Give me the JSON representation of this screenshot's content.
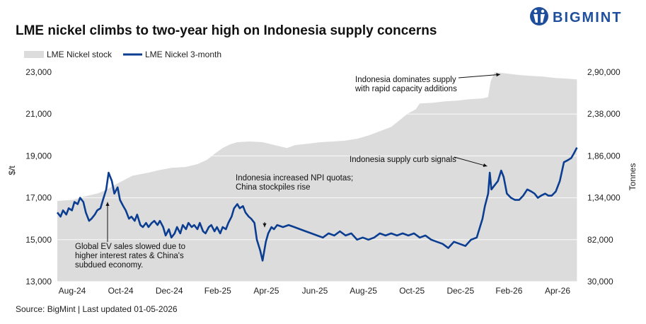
{
  "title": "LME nickel climbs to two-year high on Indonesia supply concerns",
  "brand": {
    "name": "BIGMINT",
    "color": "#1f4e9c"
  },
  "source": "Source: BigMint | Last updated 01-05-2026",
  "chart_data": {
    "type": "line",
    "title": "LME nickel climbs to two-year high on Indonesia supply concerns",
    "ylabel": "$/t",
    "y2label": "Tonnes",
    "ylim": [
      13000,
      23000
    ],
    "y2lim": [
      30000,
      2900000
    ],
    "y_ticks": [
      "13,000",
      "15,000",
      "17,000",
      "19,000",
      "21,000",
      "23,000"
    ],
    "y2_ticks": [
      "30,000",
      "82,000",
      "1,34,000",
      "1,86,000",
      "2,38,000",
      "2,90,000"
    ],
    "x_ticks": [
      "Aug-24",
      "Oct-24",
      "Dec-24",
      "Feb-25",
      "Apr-25",
      "Jun-25",
      "Aug-25",
      "Oct-25",
      "Dec-25",
      "Feb-26",
      "Apr-26"
    ],
    "grid": true,
    "legend_position": "top-left",
    "colors": {
      "stock": "#dcdcdc",
      "price": "#0b3d91"
    },
    "series": [
      {
        "name": "LME Nickel stock",
        "type": "area",
        "axis": "right",
        "points": [
          [
            "2024-08-01",
            1135000
          ],
          [
            "2024-08-20",
            1150000
          ],
          [
            "2024-09-05",
            1200000
          ],
          [
            "2024-09-20",
            1240000
          ],
          [
            "2024-10-01",
            1290000
          ],
          [
            "2024-10-08",
            1340000
          ],
          [
            "2024-10-20",
            1410000
          ],
          [
            "2024-11-01",
            1480000
          ],
          [
            "2024-11-20",
            1520000
          ],
          [
            "2024-12-05",
            1560000
          ],
          [
            "2024-12-20",
            1590000
          ],
          [
            "2025-01-05",
            1600000
          ],
          [
            "2025-01-20",
            1640000
          ],
          [
            "2025-02-01",
            1700000
          ],
          [
            "2025-02-10",
            1780000
          ],
          [
            "2025-02-20",
            1860000
          ],
          [
            "2025-03-01",
            1910000
          ],
          [
            "2025-03-10",
            1940000
          ],
          [
            "2025-03-25",
            1950000
          ],
          [
            "2025-04-10",
            1940000
          ],
          [
            "2025-04-25",
            1900000
          ],
          [
            "2025-05-10",
            1860000
          ],
          [
            "2025-05-20",
            1900000
          ],
          [
            "2025-06-05",
            1920000
          ],
          [
            "2025-06-20",
            1940000
          ],
          [
            "2025-07-05",
            1950000
          ],
          [
            "2025-07-20",
            1960000
          ],
          [
            "2025-08-05",
            1990000
          ],
          [
            "2025-08-20",
            2040000
          ],
          [
            "2025-09-01",
            2090000
          ],
          [
            "2025-09-15",
            2150000
          ],
          [
            "2025-09-25",
            2240000
          ],
          [
            "2025-10-05",
            2330000
          ],
          [
            "2025-10-15",
            2390000
          ],
          [
            "2025-10-20",
            2470000
          ],
          [
            "2025-11-05",
            2480000
          ],
          [
            "2025-11-20",
            2500000
          ],
          [
            "2025-12-05",
            2510000
          ],
          [
            "2025-12-20",
            2530000
          ],
          [
            "2026-01-05",
            2540000
          ],
          [
            "2026-01-12",
            2560000
          ],
          [
            "2026-01-15",
            2770000
          ],
          [
            "2026-01-20",
            2900000
          ],
          [
            "2026-02-05",
            2880000
          ],
          [
            "2026-02-20",
            2860000
          ],
          [
            "2026-03-05",
            2850000
          ],
          [
            "2026-03-20",
            2840000
          ],
          [
            "2026-04-05",
            2820000
          ],
          [
            "2026-04-20",
            2810000
          ],
          [
            "2026-05-01",
            2800000
          ]
        ]
      },
      {
        "name": "LME Nickel 3-month",
        "type": "line",
        "axis": "left",
        "points": [
          [
            "2024-08-01",
            16300
          ],
          [
            "2024-08-05",
            16100
          ],
          [
            "2024-08-08",
            16400
          ],
          [
            "2024-08-12",
            16200
          ],
          [
            "2024-08-15",
            16500
          ],
          [
            "2024-08-19",
            16400
          ],
          [
            "2024-08-22",
            16800
          ],
          [
            "2024-08-26",
            16700
          ],
          [
            "2024-08-29",
            17000
          ],
          [
            "2024-09-02",
            16800
          ],
          [
            "2024-09-05",
            16300
          ],
          [
            "2024-09-09",
            15900
          ],
          [
            "2024-09-12",
            16000
          ],
          [
            "2024-09-16",
            16200
          ],
          [
            "2024-09-19",
            16400
          ],
          [
            "2024-09-23",
            16500
          ],
          [
            "2024-09-26",
            16900
          ],
          [
            "2024-09-30",
            17400
          ],
          [
            "2024-10-03",
            18200
          ],
          [
            "2024-10-07",
            17800
          ],
          [
            "2024-10-10",
            17200
          ],
          [
            "2024-10-14",
            17500
          ],
          [
            "2024-10-17",
            16900
          ],
          [
            "2024-10-21",
            16600
          ],
          [
            "2024-10-24",
            16400
          ],
          [
            "2024-10-28",
            16000
          ],
          [
            "2024-10-31",
            16100
          ],
          [
            "2024-11-04",
            15900
          ],
          [
            "2024-11-07",
            16200
          ],
          [
            "2024-11-11",
            15700
          ],
          [
            "2024-11-14",
            15600
          ],
          [
            "2024-11-18",
            15800
          ],
          [
            "2024-11-21",
            15600
          ],
          [
            "2024-11-25",
            15800
          ],
          [
            "2024-11-28",
            15900
          ],
          [
            "2024-12-02",
            15700
          ],
          [
            "2024-12-05",
            15900
          ],
          [
            "2024-12-09",
            15600
          ],
          [
            "2024-12-12",
            15200
          ],
          [
            "2024-12-16",
            15500
          ],
          [
            "2024-12-19",
            15100
          ],
          [
            "2024-12-23",
            15300
          ],
          [
            "2024-12-26",
            15600
          ],
          [
            "2024-12-30",
            15300
          ],
          [
            "2025-01-02",
            15700
          ],
          [
            "2025-01-06",
            15500
          ],
          [
            "2025-01-09",
            15800
          ],
          [
            "2025-01-13",
            15600
          ],
          [
            "2025-01-16",
            15700
          ],
          [
            "2025-01-20",
            15500
          ],
          [
            "2025-01-23",
            15800
          ],
          [
            "2025-01-27",
            15400
          ],
          [
            "2025-01-30",
            15300
          ],
          [
            "2025-02-03",
            15600
          ],
          [
            "2025-02-06",
            15700
          ],
          [
            "2025-02-10",
            15400
          ],
          [
            "2025-02-13",
            15600
          ],
          [
            "2025-02-17",
            15300
          ],
          [
            "2025-02-20",
            15600
          ],
          [
            "2025-02-24",
            15500
          ],
          [
            "2025-02-27",
            15800
          ],
          [
            "2025-03-03",
            16100
          ],
          [
            "2025-03-06",
            16500
          ],
          [
            "2025-03-10",
            16700
          ],
          [
            "2025-03-13",
            16500
          ],
          [
            "2025-03-17",
            16600
          ],
          [
            "2025-03-20",
            16300
          ],
          [
            "2025-03-24",
            16100
          ],
          [
            "2025-03-27",
            16000
          ],
          [
            "2025-03-31",
            15800
          ],
          [
            "2025-04-03",
            15000
          ],
          [
            "2025-04-07",
            14500
          ],
          [
            "2025-04-10",
            14000
          ],
          [
            "2025-04-14",
            14900
          ],
          [
            "2025-04-17",
            15300
          ],
          [
            "2025-04-21",
            15600
          ],
          [
            "2025-04-24",
            15500
          ],
          [
            "2025-04-28",
            15700
          ],
          [
            "2025-05-05",
            15600
          ],
          [
            "2025-05-12",
            15700
          ],
          [
            "2025-05-19",
            15600
          ],
          [
            "2025-05-26",
            15500
          ],
          [
            "2025-06-02",
            15400
          ],
          [
            "2025-06-09",
            15300
          ],
          [
            "2025-06-16",
            15200
          ],
          [
            "2025-06-23",
            15100
          ],
          [
            "2025-06-30",
            15300
          ],
          [
            "2025-07-07",
            15200
          ],
          [
            "2025-07-14",
            15400
          ],
          [
            "2025-07-21",
            15200
          ],
          [
            "2025-07-28",
            15300
          ],
          [
            "2025-08-04",
            15000
          ],
          [
            "2025-08-11",
            15100
          ],
          [
            "2025-08-18",
            15000
          ],
          [
            "2025-08-25",
            15100
          ],
          [
            "2025-09-01",
            15300
          ],
          [
            "2025-09-08",
            15200
          ],
          [
            "2025-09-15",
            15300
          ],
          [
            "2025-09-22",
            15200
          ],
          [
            "2025-09-29",
            15300
          ],
          [
            "2025-10-06",
            15200
          ],
          [
            "2025-10-13",
            15300
          ],
          [
            "2025-10-20",
            15100
          ],
          [
            "2025-10-27",
            15200
          ],
          [
            "2025-11-03",
            15000
          ],
          [
            "2025-11-10",
            14900
          ],
          [
            "2025-11-17",
            14800
          ],
          [
            "2025-11-24",
            14600
          ],
          [
            "2025-12-01",
            14900
          ],
          [
            "2025-12-08",
            14800
          ],
          [
            "2025-12-15",
            14700
          ],
          [
            "2025-12-22",
            15000
          ],
          [
            "2025-12-29",
            15100
          ],
          [
            "2026-01-05",
            16000
          ],
          [
            "2026-01-08",
            16600
          ],
          [
            "2026-01-12",
            17200
          ],
          [
            "2026-01-14",
            18200
          ],
          [
            "2026-01-16",
            17400
          ],
          [
            "2026-01-20",
            17600
          ],
          [
            "2026-01-24",
            17800
          ],
          [
            "2026-01-28",
            18300
          ],
          [
            "2026-01-31",
            18000
          ],
          [
            "2026-02-04",
            17200
          ],
          [
            "2026-02-09",
            17000
          ],
          [
            "2026-02-14",
            16900
          ],
          [
            "2026-02-19",
            16900
          ],
          [
            "2026-02-24",
            17100
          ],
          [
            "2026-03-01",
            17400
          ],
          [
            "2026-03-06",
            17300
          ],
          [
            "2026-03-10",
            17200
          ],
          [
            "2026-03-14",
            17000
          ],
          [
            "2026-03-18",
            17100
          ],
          [
            "2026-03-23",
            17200
          ],
          [
            "2026-03-27",
            17100
          ],
          [
            "2026-03-31",
            17100
          ],
          [
            "2026-04-05",
            17300
          ],
          [
            "2026-04-10",
            17800
          ],
          [
            "2026-04-15",
            18700
          ],
          [
            "2026-04-20",
            18800
          ],
          [
            "2026-04-24",
            18900
          ],
          [
            "2026-04-27",
            19100
          ],
          [
            "2026-05-01",
            19400
          ]
        ]
      }
    ],
    "annotations": [
      {
        "text_lines": [
          "Indonesia dominates supply",
          "with rapid capacity additions"
        ],
        "point": [
          "2026-02-01",
          2880000
        ],
        "axis": "right"
      },
      {
        "text_lines": [
          "Indonesia supply curb signals"
        ],
        "point": [
          "2026-01-16",
          18400
        ],
        "axis": "left"
      },
      {
        "text_lines": [
          "Indonesia increased NPI quotas;",
          "China stockpiles rise"
        ],
        "point": [
          "2025-04-29",
          15800
        ],
        "axis": "left"
      },
      {
        "text_lines": [
          "Global EV sales slowed due to",
          "higher interest rates & China's",
          "subdued economy."
        ],
        "point": [
          "2024-10-03",
          17000
        ],
        "axis": "left"
      }
    ]
  }
}
